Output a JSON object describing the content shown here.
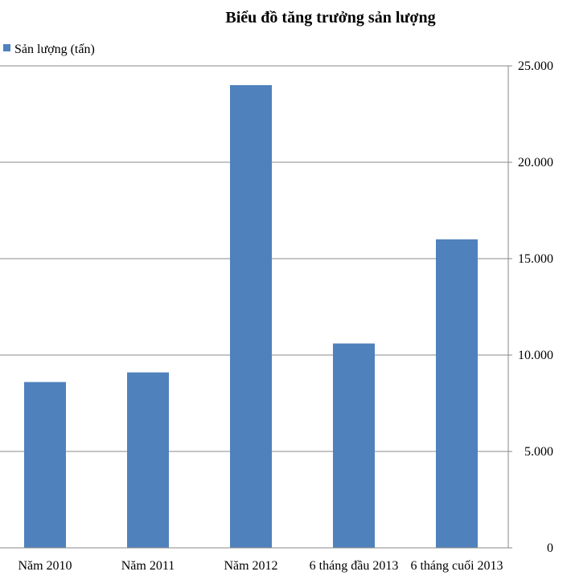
{
  "chart_data": {
    "type": "bar",
    "title": "Biểu đồ tăng trưởng sản lượng",
    "categories": [
      "Năm 2010",
      "Năm 2011",
      "Năm 2012",
      "6 tháng đầu 2013",
      "6 tháng cuối 2013"
    ],
    "series": [
      {
        "name": "Sản lượng (tấn)",
        "values": [
          8600,
          9100,
          24000,
          10600,
          16000
        ],
        "color": "#4F81BD"
      }
    ],
    "yticks": [
      "0",
      "5.000",
      "10.000",
      "15.000",
      "20.000",
      "25.000"
    ],
    "ylim": [
      0,
      25000
    ],
    "y_axis_position": "right",
    "grid": true,
    "legend": "top-left"
  }
}
